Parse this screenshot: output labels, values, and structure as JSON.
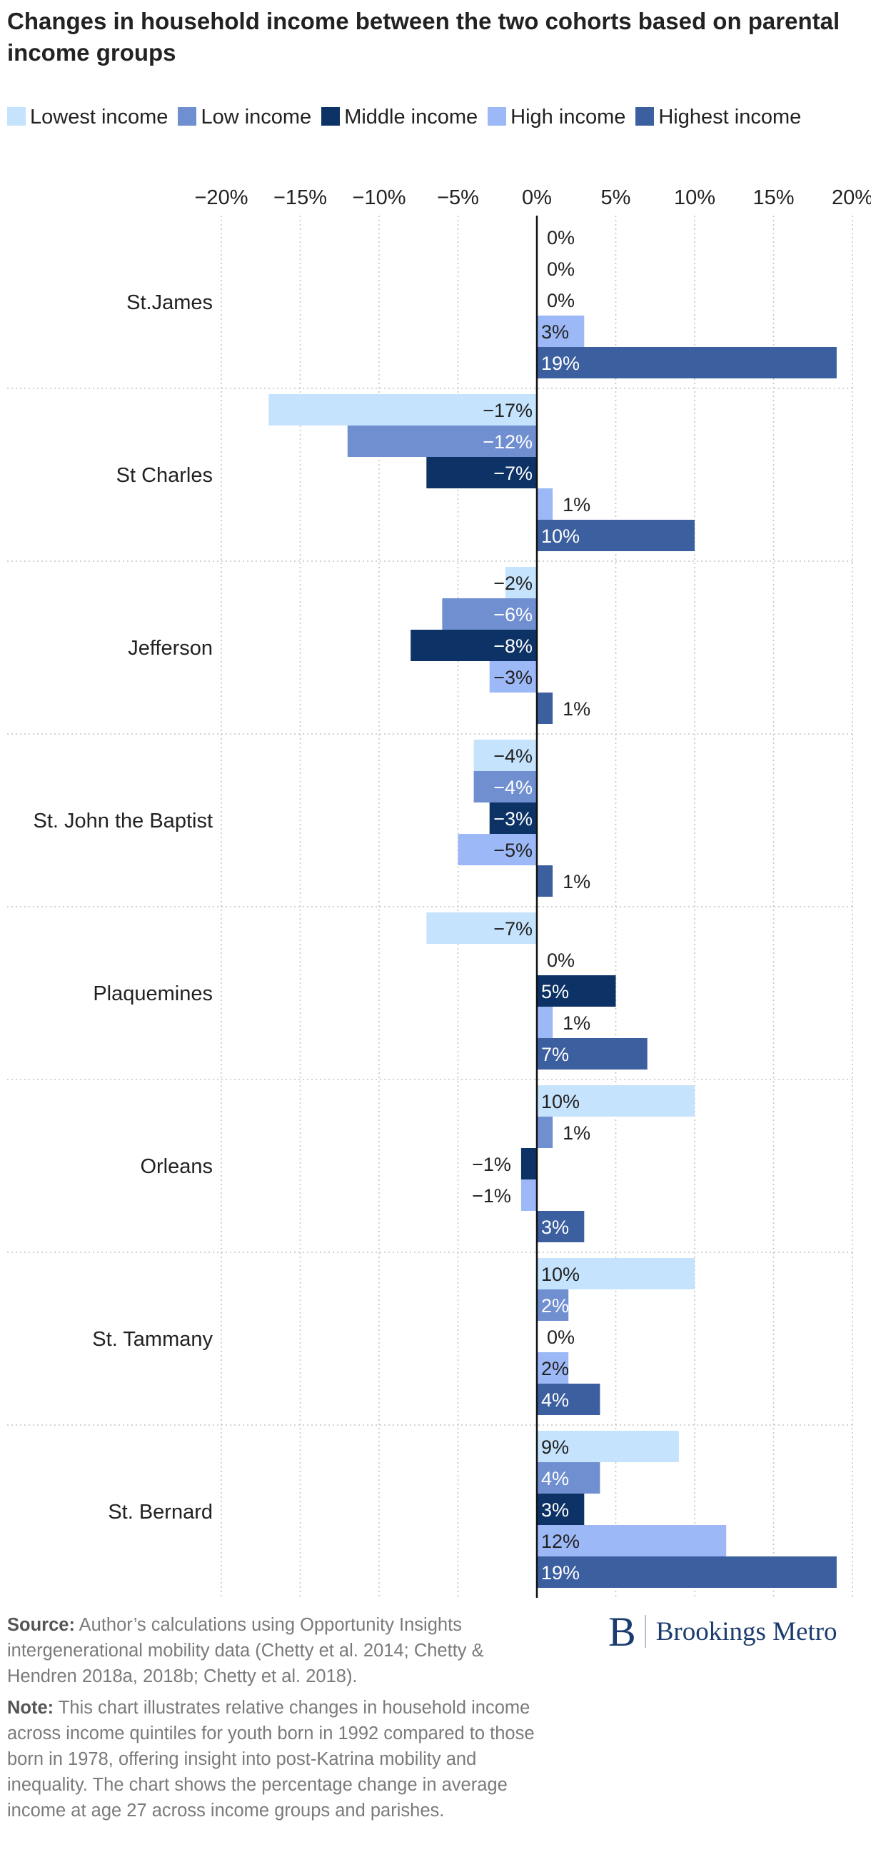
{
  "title": "Changes in household income between the two cohorts based on parental income groups",
  "footer": {
    "source_label": "Source:",
    "source_text": "Author’s calculations using Opportunity Insights intergenerational mobility data (Chetty et al. 2014; Chetty & Hendren 2018a, 2018b; Chetty et al. 2018).",
    "note_label": "Note:",
    "note_text": "This chart illustrates relative changes in household income across income quintiles for youth born in 1992 compared to those born in 1978, offering insight into post-Katrina mobility and inequality. The chart shows the percentage change in average income at age 27 across income groups and parishes."
  },
  "brand": {
    "mark": "B",
    "name": "Brookings Metro"
  },
  "colors": {
    "Lowest income": "#c5e3fc",
    "Low income": "#6f8fd0",
    "Middle income": "#0d3266",
    "High income": "#9cb8f6",
    "Highest income": "#3c5f9f"
  },
  "chart_data": {
    "type": "bar",
    "orientation": "horizontal",
    "categories": [
      "St.James",
      "St Charles",
      "Jefferson",
      "St. John the Baptist",
      "Plaquemines",
      "Orleans",
      "St. Tammany",
      "St. Bernard"
    ],
    "series": [
      {
        "name": "Lowest income",
        "values": [
          0,
          -17,
          -2,
          -4,
          -7,
          10,
          10,
          9
        ]
      },
      {
        "name": "Low income",
        "values": [
          0,
          -12,
          -6,
          -4,
          0,
          1,
          2,
          4
        ]
      },
      {
        "name": "Middle income",
        "values": [
          0,
          -7,
          -8,
          -3,
          5,
          -1,
          0,
          3
        ]
      },
      {
        "name": "High income",
        "values": [
          3,
          1,
          -3,
          -5,
          1,
          -1,
          2,
          12
        ]
      },
      {
        "name": "Highest income",
        "values": [
          19,
          10,
          1,
          1,
          7,
          3,
          4,
          19
        ]
      }
    ],
    "xlim": [
      -20,
      20
    ],
    "xticks": [
      -20,
      -15,
      -10,
      -5,
      0,
      5,
      10,
      15,
      20
    ],
    "tick_labels": [
      "−20%",
      "−15%",
      "−10%",
      "−5%",
      "0%",
      "5%",
      "10%",
      "15%",
      "20%"
    ],
    "value_labels": [
      [
        "0%",
        "−17%",
        "−2%",
        "−4%",
        "−7%",
        "10%",
        "10%",
        "9%"
      ],
      [
        "0%",
        "−12%",
        "−6%",
        "−4%",
        "0%",
        "1%",
        "2%",
        "4%"
      ],
      [
        "0%",
        "−7%",
        "−8%",
        "−3%",
        "5%",
        "−1%",
        "0%",
        "3%"
      ],
      [
        "3%",
        "1%",
        "−3%",
        "−5%",
        "1%",
        "−1%",
        "2%",
        "12%"
      ],
      [
        "19%",
        "10%",
        "1%",
        "1%",
        "7%",
        "3%",
        "4%",
        "19%"
      ]
    ],
    "grid": true,
    "legend_position": "top"
  }
}
